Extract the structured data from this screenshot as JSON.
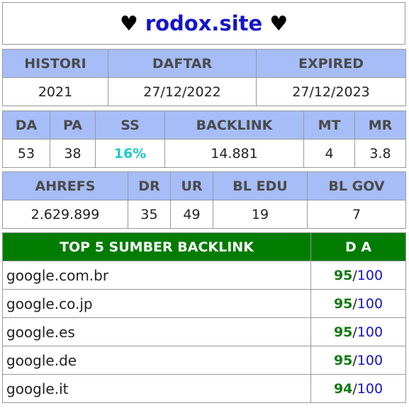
{
  "title": {
    "heart_left": "♥",
    "site": "rodox.site",
    "heart_right": "♥"
  },
  "dates": {
    "headers": [
      "HISTORI",
      "DAFTAR",
      "EXPIRED"
    ],
    "values": [
      "2021",
      "27/12/2022",
      "27/12/2023"
    ]
  },
  "metrics": {
    "headers": [
      "DA",
      "PA",
      "SS",
      "BACKLINK",
      "MT",
      "MR"
    ],
    "values": [
      "53",
      "38",
      "16%",
      "14.881",
      "4",
      "3.8"
    ]
  },
  "ahrefs": {
    "headers": [
      "AHREFS",
      "DR",
      "UR",
      "BL EDU",
      "BL GOV"
    ],
    "values": [
      "2.629.899",
      "35",
      "49",
      "19",
      "7"
    ]
  },
  "top_backlinks": {
    "header_source": "TOP 5 SUMBER BACKLINK",
    "header_da": "D A",
    "separator": "/",
    "rows": [
      {
        "domain": "google.com.br",
        "score": "95",
        "max": "100"
      },
      {
        "domain": "google.co.jp",
        "score": "95",
        "max": "100"
      },
      {
        "domain": "google.es",
        "score": "95",
        "max": "100"
      },
      {
        "domain": "google.de",
        "score": "95",
        "max": "100"
      },
      {
        "domain": "google.it",
        "score": "94",
        "max": "100"
      }
    ]
  },
  "colors": {
    "header_bg": "#a6bdf7",
    "top_header_bg": "#007c00",
    "site_color": "#1414c8",
    "ss_color": "#1ec8c8",
    "score_color": "#117a11"
  }
}
